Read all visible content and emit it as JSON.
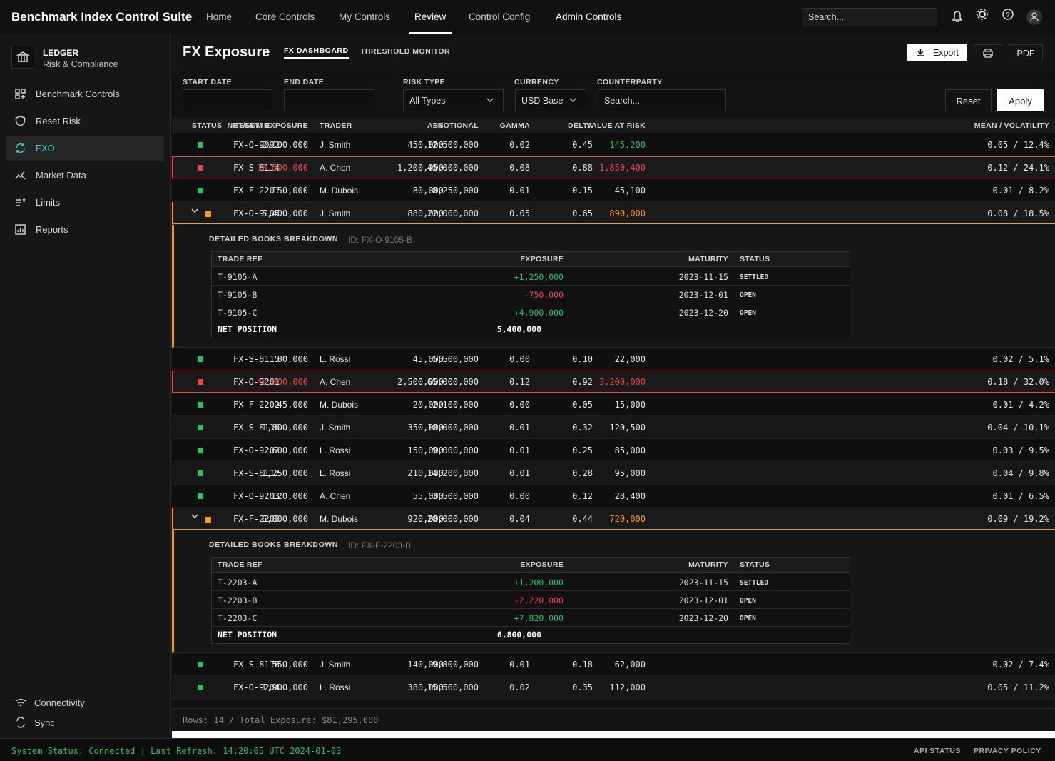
{
  "header": {
    "title": "Benchmark Index Control Suite",
    "nav": [
      "Home",
      "Core Controls",
      "My Controls",
      "Review",
      "Control Config",
      "Admin Controls"
    ],
    "search": "Search..."
  },
  "sidebar": {
    "brand": "LEDGER",
    "subtitle": "Risk & Compliance",
    "items": [
      "Benchmark Controls",
      "Reset Risk",
      "FXO",
      "Market Data",
      "Limits",
      "Reports"
    ],
    "footer": [
      "Connectivity",
      "Sync"
    ]
  },
  "main": {
    "title": "FX Exposure",
    "tabs": [
      "FX DASHBOARD",
      "THRESHOLD MONITOR"
    ],
    "export": "Export",
    "pdf": "PDF"
  },
  "filters": {
    "start_date": "START DATE",
    "end_date": "END DATE",
    "risk_type": "RISK TYPE",
    "risk_type_value": "All Types",
    "currency": "CURRENCY",
    "currency_value": "USD Base",
    "counterparty": "COUNTERPARTY",
    "counterparty_placeholder": "Search...",
    "reset": "Reset",
    "apply": "Apply"
  },
  "table": {
    "columns": [
      "STATUS",
      "ASSET ID",
      "TRADER",
      "NOTIONAL",
      "VALUE AT RISK",
      "DELTA",
      "GAMMA",
      "ABS",
      "NET/SUM EXPOSURE",
      "MEAN / VOLATILITY"
    ],
    "rows": [
      {
        "status_color": "#22c55e",
        "var_color": "#22c55e",
        "cells": [
          "FX-O-9092",
          "J. Smith",
          "12,500,000",
          "145,200",
          "0.45",
          "0.02",
          "450,000",
          "2,100,000",
          "0.05 / 12.4%"
        ]
      },
      {
        "status_color": "#ef4444",
        "highlight": true,
        "var_color": "#ef4444",
        "net_color": "#ef4444",
        "cells": [
          "FX-S-8114",
          "A. Chen",
          "45,000,000",
          "1,850,400",
          "0.88",
          "0.08",
          "1,200,000",
          "18,500,000",
          "0.12 / 24.1%"
        ]
      },
      {
        "status_color": "#22c55e",
        "cells": [
          "FX-F-2201",
          "M. Dubois",
          "8,250,000",
          "45,100",
          "0.15",
          "0.01",
          "80,000",
          "150,000",
          "-0.01 / 8.2%"
        ]
      },
      {
        "status_color": "#f59e0b",
        "highlight": true,
        "var_color": "#f59e0b",
        "cells": [
          "FX-O-9105",
          "J. Smith",
          "22,000,000",
          "890,000",
          "0.65",
          "0.05",
          "880,000",
          "5,400,000",
          "0.08 / 18.5%"
        ],
        "detail": {
          "title": "DETAILED BOOKS BREAKDOWN",
          "id": "ID: FX-O-9105-B",
          "columns": [
            "TRADE REF",
            "EXPOSURE",
            "MATURITY",
            "STATUS"
          ],
          "trades": [
            [
              "T-9105-A",
              "+1,250,000",
              "2023-11-15",
              "SETTLED"
            ],
            [
              "T-9105-B",
              "-750,000",
              "2023-12-01",
              "OPEN"
            ],
            [
              "T-9105-C",
              "+4,900,000",
              "2023-12-20",
              "OPEN"
            ]
          ],
          "net_label": "NET POSITION",
          "net": "5,400,000"
        }
      },
      {
        "status_color": "#22c55e",
        "cells": [
          "FX-S-8115",
          "L. Rossi",
          "5,500,000",
          "22,000",
          "0.10",
          "0.00",
          "45,000",
          "80,000",
          "0.02 / 5.1%"
        ]
      },
      {
        "status_color": "#ef4444",
        "highlight": true,
        "var_color": "#ef4444",
        "net_color": "#ef4444",
        "cells": [
          "FX-O-9201",
          "A. Chen",
          "65,000,000",
          "3,200,000",
          "0.92",
          "0.12",
          "2,500,000",
          "42,000,000",
          "0.18 / 32.0%"
        ]
      },
      {
        "status_color": "#22c55e",
        "cells": [
          "FX-F-2202",
          "M. Dubois",
          "2,100,000",
          "15,000",
          "0.05",
          "0.00",
          "20,000",
          "45,000",
          "0.01 / 4.2%"
        ]
      },
      {
        "status_color": "#22c55e",
        "cells": [
          "FX-S-8116",
          "J. Smith",
          "18,000,000",
          "120,500",
          "0.32",
          "0.01",
          "350,000",
          "1,800,000",
          "0.04 / 10.1%"
        ]
      },
      {
        "status_color": "#22c55e",
        "cells": [
          "FX-O-9202",
          "L. Rossi",
          "9,000,000",
          "85,000",
          "0.25",
          "0.01",
          "150,000",
          "600,000",
          "0.03 / 9.5%"
        ]
      },
      {
        "status_color": "#22c55e",
        "cells": [
          "FX-S-8117",
          "L. Rossi",
          "14,200,000",
          "95,000",
          "0.28",
          "0.01",
          "210,000",
          "1,250,000",
          "0.04 / 9.8%"
        ]
      },
      {
        "status_color": "#22c55e",
        "cells": [
          "FX-O-9203",
          "A. Chen",
          "3,500,000",
          "28,400",
          "0.12",
          "0.00",
          "55,000",
          "120,000",
          "0.01 / 6.5%"
        ]
      },
      {
        "status_color": "#f59e0b",
        "highlight": true,
        "var_color": "#f59e0b",
        "cells": [
          "FX-F-2203",
          "M. Dubois",
          "28,000,000",
          "720,000",
          "0.44",
          "0.04",
          "920,000",
          "6,800,000",
          "0.09 / 19.2%"
        ],
        "detail": {
          "title": "DETAILED BOOKS BREAKDOWN",
          "id": "ID: FX-F-2203-B",
          "columns": [
            "TRADE REF",
            "EXPOSURE",
            "MATURITY",
            "STATUS"
          ],
          "trades": [
            [
              "T-2203-A",
              "+1,200,000",
              "2023-11-15",
              "SETTLED"
            ],
            [
              "T-2203-B",
              "-2,220,000",
              "2023-12-01",
              "OPEN"
            ],
            [
              "T-2203-C",
              "+7,820,000",
              "2023-12-20",
              "OPEN"
            ]
          ],
          "net_label": "NET POSITION",
          "net": "6,800,000"
        }
      },
      {
        "status_color": "#22c55e",
        "cells": [
          "FX-S-8118",
          "J. Smith",
          "9,800,000",
          "62,000",
          "0.18",
          "0.01",
          "140,000",
          "550,000",
          "0.02 / 7.4%"
        ]
      },
      {
        "status_color": "#22c55e",
        "cells": [
          "FX-O-9204",
          "L. Rossi",
          "15,500,000",
          "112,000",
          "0.35",
          "0.02",
          "380,000",
          "1,900,000",
          "0.05 / 11.2%"
        ]
      }
    ],
    "summary": "Rows: 14 / Total Exposure: $81,295,000"
  },
  "status_bar": {
    "status": "System Status: Connected | Last Refresh: 14:20:05 UTC 2024-01-03",
    "links": [
      "API STATUS",
      "PRIVACY POLICY"
    ]
  }
}
